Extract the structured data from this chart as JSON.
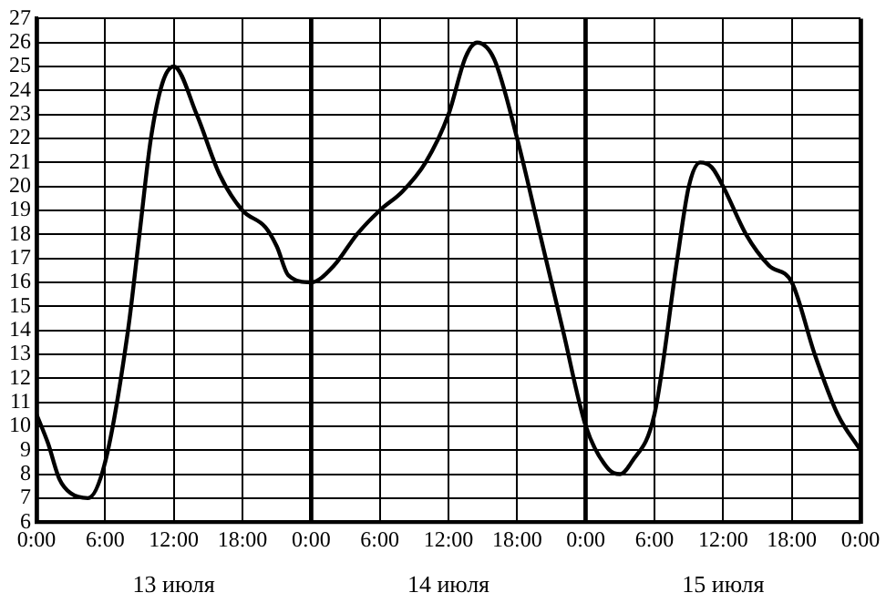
{
  "chart_data": {
    "type": "line",
    "x": [
      "--07-13T00:00",
      "--07-13T01:00",
      "--07-13T02:00",
      "--07-13T03:00",
      "--07-13T04:30",
      "--07-13T06:00",
      "--07-13T08:00",
      "--07-13T09:00",
      "--07-13T10:00",
      "--07-13T11:00",
      "--07-13T12:00",
      "--07-13T14:00",
      "--07-13T16:00",
      "--07-13T18:00",
      "--07-13T20:00",
      "--07-13T21:00",
      "--07-13T22:00",
      "--07-14T00:00",
      "--07-14T02:00",
      "--07-14T04:00",
      "--07-14T06:00",
      "--07-14T08:00",
      "--07-14T10:00",
      "--07-14T12:00",
      "--07-14T13:30",
      "--07-14T14:30",
      "--07-14T16:00",
      "--07-14T18:00",
      "--07-14T20:00",
      "--07-14T22:00",
      "--07-15T00:00",
      "--07-15T02:00",
      "--07-15T03:00",
      "--07-15T04:00",
      "--07-15T06:00",
      "--07-15T08:00",
      "--07-15T09:00",
      "--07-15T10:00",
      "--07-15T11:00",
      "--07-15T12:00",
      "--07-15T14:00",
      "--07-15T16:00",
      "--07-15T18:00",
      "--07-15T20:00",
      "--07-15T22:00",
      "--07-16T00:00"
    ],
    "series": [
      {
        "color": "#000000",
        "values": [
          10.5,
          9.3,
          7.8,
          7.2,
          7,
          8.5,
          14,
          18,
          22,
          24.3,
          25,
          23,
          20.5,
          19,
          18.3,
          17.5,
          16.3,
          16,
          16.7,
          18,
          19,
          19.8,
          21,
          23,
          25.4,
          26,
          25.3,
          22,
          18,
          14,
          10,
          8.2,
          8,
          8.5,
          10.5,
          17,
          20,
          21,
          20.8,
          20,
          18,
          16.7,
          16,
          13,
          10.5,
          9
        ]
      }
    ],
    "xlim": [
      "--07-13T00:00",
      "--07-16T00:00"
    ],
    "xticks": [
      {
        "value": "--07-13T00:00",
        "label": "0:00"
      },
      {
        "value": "--07-13T06:00",
        "label": "6:00"
      },
      {
        "value": "--07-13T12:00",
        "label": "12:00"
      },
      {
        "value": "--07-13T18:00",
        "label": "18:00"
      },
      {
        "value": "--07-14T00:00",
        "label": "0:00"
      },
      {
        "value": "--07-14T06:00",
        "label": "6:00"
      },
      {
        "value": "--07-14T12:00",
        "label": "12:00"
      },
      {
        "value": "--07-14T18:00",
        "label": "18:00"
      },
      {
        "value": "--07-15T00:00",
        "label": "0:00"
      },
      {
        "value": "--07-15T06:00",
        "label": "6:00"
      },
      {
        "value": "--07-15T12:00",
        "label": "12:00"
      },
      {
        "value": "--07-15T18:00",
        "label": "18:00"
      },
      {
        "value": "--07-16T00:00",
        "label": "0:00"
      }
    ],
    "ylim": [
      6,
      27
    ],
    "yticks": [
      6,
      7,
      8,
      9,
      10,
      11,
      12,
      13,
      14,
      15,
      16,
      17,
      18,
      19,
      20,
      21,
      22,
      23,
      24,
      25,
      26,
      27
    ],
    "annotations": [
      "13 июля",
      "14 июля",
      "15 июля"
    ],
    "grid": true,
    "legend": false,
    "marker": "none",
    "line_style": "solid"
  }
}
